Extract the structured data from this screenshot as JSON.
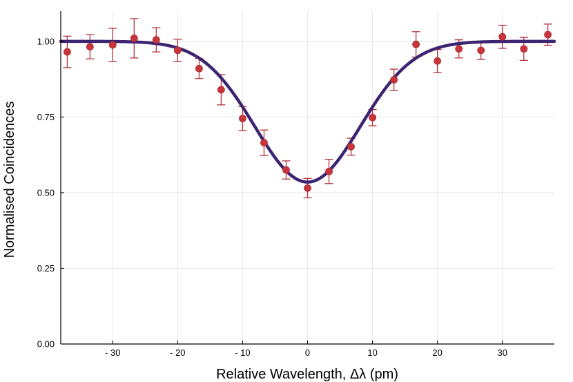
{
  "chart_data": {
    "type": "scatter",
    "title": "",
    "xlabel": "Relative Wavelength, Δλ (pm)",
    "ylabel": "Normalised Coincidences",
    "xlim": [
      -38,
      38
    ],
    "ylim": [
      0,
      1.1
    ],
    "grid": true,
    "x_ticks": [
      -30,
      -20,
      -10,
      0,
      10,
      20,
      30
    ],
    "x_tick_labels": [
      "- 30",
      "- 20",
      "- 10",
      "0",
      "10",
      "20",
      "30"
    ],
    "y_ticks": [
      0,
      0.25,
      0.5,
      0.75,
      1.0
    ],
    "y_tick_labels": [
      "0.00",
      "0.25",
      "0.50",
      "0.75",
      "1.00"
    ],
    "colors": {
      "points": "#c8353b",
      "errorbars": "#b2303a",
      "fit": "#3d2470",
      "grid": "#e8e8e8",
      "axis": "#000000"
    },
    "series": [
      {
        "name": "measured",
        "kind": "points_with_errorbars",
        "x": [
          -37,
          -33.5,
          -30,
          -26.7,
          -23.3,
          -20,
          -16.7,
          -13.3,
          -10,
          -6.7,
          -3.3,
          0,
          3.3,
          6.7,
          10,
          13.3,
          16.7,
          20,
          23.3,
          26.7,
          30,
          33.3,
          37
        ],
        "y": [
          0.965,
          0.982,
          0.988,
          1.01,
          1.005,
          0.97,
          0.91,
          0.84,
          0.745,
          0.665,
          0.575,
          0.515,
          0.57,
          0.652,
          0.748,
          0.873,
          0.99,
          0.935,
          0.975,
          0.97,
          1.015,
          0.975,
          1.022
        ],
        "yerr": [
          0.052,
          0.04,
          0.055,
          0.065,
          0.04,
          0.037,
          0.033,
          0.05,
          0.04,
          0.042,
          0.03,
          0.032,
          0.04,
          0.028,
          0.027,
          0.035,
          0.042,
          0.038,
          0.03,
          0.03,
          0.038,
          0.038,
          0.035
        ]
      },
      {
        "name": "fit",
        "kind": "curve",
        "model": "gaussian_dip",
        "baseline": 1.0,
        "depth": 0.465,
        "center": 0,
        "sigma": 8.1
      }
    ]
  }
}
